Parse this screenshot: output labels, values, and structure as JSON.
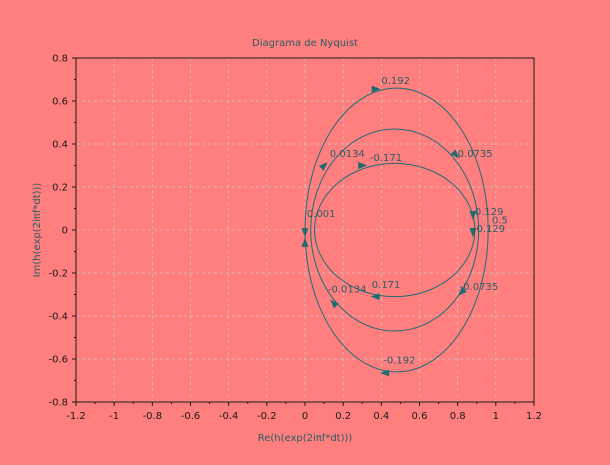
{
  "colors": {
    "background": "#ff7f7f",
    "axis": "#1a1a1a",
    "grid": "#c9c9c9",
    "curve": "#1f6b73",
    "text": "#2a5c66"
  },
  "chart_data": {
    "type": "line",
    "title": "Diagrama de Nyquist",
    "xlabel": "Re(h(exp(2iπf*dt)))",
    "ylabel": "Im(h(exp(2iπf*dt)))",
    "xlim": [
      -1.2,
      1.2
    ],
    "ylim": [
      -0.8,
      0.8
    ],
    "grid": true,
    "x_ticks": [
      -1.2,
      -1.0,
      -0.8,
      -0.6,
      -0.4,
      -0.2,
      0,
      0.2,
      0.4,
      0.6,
      0.8,
      1.0,
      1.2
    ],
    "x_tick_labels": [
      "-1.2",
      "-1",
      "-0.8",
      "-0.6",
      "-0.4",
      "-0.2",
      "0",
      "0.2",
      "0.4",
      "0.6",
      "0.8",
      "1",
      "1.2"
    ],
    "y_ticks": [
      -0.8,
      -0.6,
      -0.4,
      -0.2,
      0,
      0.2,
      0.4,
      0.6,
      0.8
    ],
    "y_tick_labels": [
      "-0.8",
      "-0.6",
      "-0.4",
      "-0.2",
      "0",
      "0.2",
      "0.4",
      "0.6",
      "0.8"
    ],
    "curves": [
      {
        "cx": 0.47,
        "cy": 0,
        "rx": 0.42,
        "ry": 0.31
      },
      {
        "cx": 0.47,
        "cy": 0,
        "rx": 0.44,
        "ry": 0.47
      },
      {
        "cx": 0.48,
        "cy": 0,
        "rx": 0.48,
        "ry": 0.66
      }
    ],
    "arrows": [
      {
        "x": 0.37,
        "y": 0.655,
        "dir": "right"
      },
      {
        "x": 0.79,
        "y": 0.35,
        "dir": "down-right"
      },
      {
        "x": 0.3,
        "y": 0.3,
        "dir": "right"
      },
      {
        "x": 0.1,
        "y": 0.3,
        "dir": "up-right"
      },
      {
        "x": 0.88,
        "y": 0.07,
        "dir": "down"
      },
      {
        "x": 0.88,
        "y": -0.01,
        "dir": "down"
      },
      {
        "x": 0,
        "y": -0.01,
        "dir": "down"
      },
      {
        "x": 0.0,
        "y": -0.06,
        "dir": "up"
      },
      {
        "x": 0.37,
        "y": -0.31,
        "dir": "left"
      },
      {
        "x": 0.15,
        "y": -0.34,
        "dir": "up-left"
      },
      {
        "x": 0.82,
        "y": -0.29,
        "dir": "down-left"
      },
      {
        "x": 0.42,
        "y": -0.665,
        "dir": "left"
      }
    ],
    "annotations": [
      {
        "text": "0.192",
        "x": 0.4,
        "y": 0.68
      },
      {
        "text": "0.0134",
        "x": 0.13,
        "y": 0.34
      },
      {
        "text": "-0.171",
        "x": 0.34,
        "y": 0.32
      },
      {
        "text": "0.0735",
        "x": 0.8,
        "y": 0.34
      },
      {
        "text": "0.129",
        "x": 0.89,
        "y": 0.07
      },
      {
        "text": "0.5",
        "x": 0.98,
        "y": 0.03
      },
      {
        "text": "-0.129",
        "x": 0.88,
        "y": -0.01
      },
      {
        "text": "0.001",
        "x": 0.01,
        "y": 0.06
      },
      {
        "text": "-0.0134",
        "x": 0.12,
        "y": -0.29
      },
      {
        "text": "0.171",
        "x": 0.35,
        "y": -0.27
      },
      {
        "text": "-0.0735",
        "x": 0.81,
        "y": -0.28
      },
      {
        "text": "-0.192",
        "x": 0.41,
        "y": -0.62
      }
    ]
  }
}
